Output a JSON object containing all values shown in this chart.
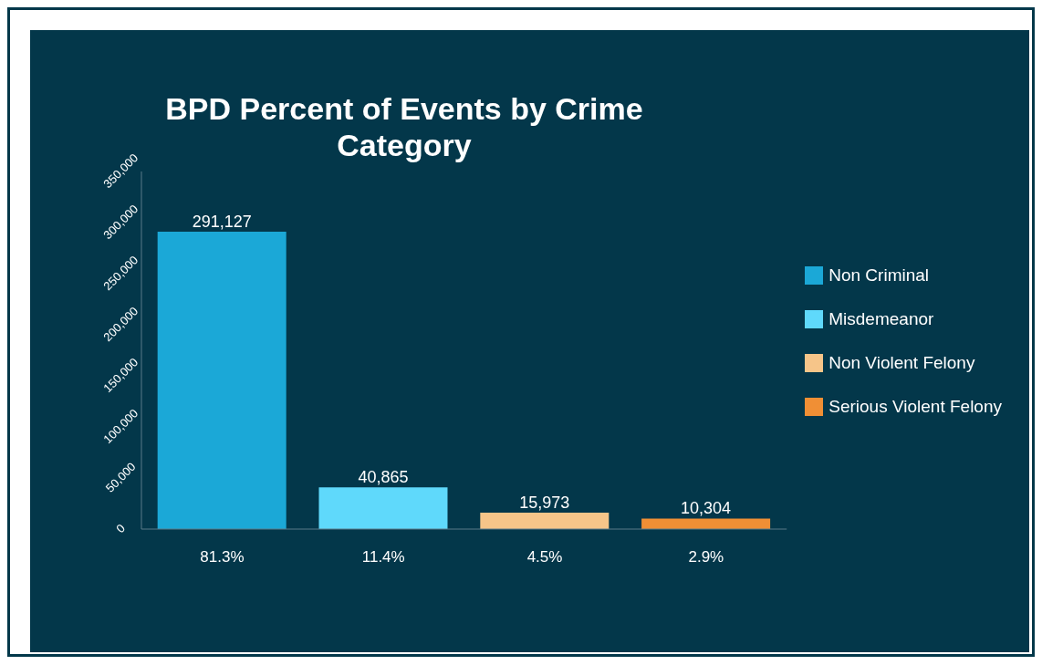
{
  "chart_data": {
    "type": "bar",
    "title": "BPD Percent of Events by Crime Category",
    "categories": [
      "81.3%",
      "11.4%",
      "4.5%",
      "2.9%"
    ],
    "series": [
      {
        "name": "Non Criminal",
        "color": "#1ba8d7",
        "values": [
          291127,
          null,
          null,
          null
        ],
        "value_labels": [
          "291,127",
          null,
          null,
          null
        ]
      },
      {
        "name": "Misdemeanor",
        "color": "#5fd9fb",
        "values": [
          null,
          40865,
          null,
          null
        ],
        "value_labels": [
          null,
          "40,865",
          null,
          null
        ]
      },
      {
        "name": "Non Violent Felony",
        "color": "#f6c589",
        "values": [
          null,
          null,
          15973,
          null
        ],
        "value_labels": [
          null,
          null,
          "15,973",
          null
        ]
      },
      {
        "name": "Serious Violent Felony",
        "color": "#f08f35",
        "values": [
          null,
          null,
          null,
          10304
        ],
        "value_labels": [
          null,
          null,
          null,
          "10,304"
        ]
      }
    ],
    "ylim": [
      0,
      350000
    ],
    "yticks": [
      0,
      {
        "value": 50000,
        "label": "50,000"
      },
      {
        "value": 100000,
        "label": "100,000"
      },
      {
        "value": 150000,
        "label": "150,000"
      },
      {
        "value": 200000,
        "label": "200,000"
      },
      {
        "value": 250000,
        "label": "250,000"
      },
      {
        "value": 300000,
        "label": "300,000"
      },
      {
        "value": 350000,
        "label": "350,000"
      }
    ],
    "legend": "right"
  }
}
